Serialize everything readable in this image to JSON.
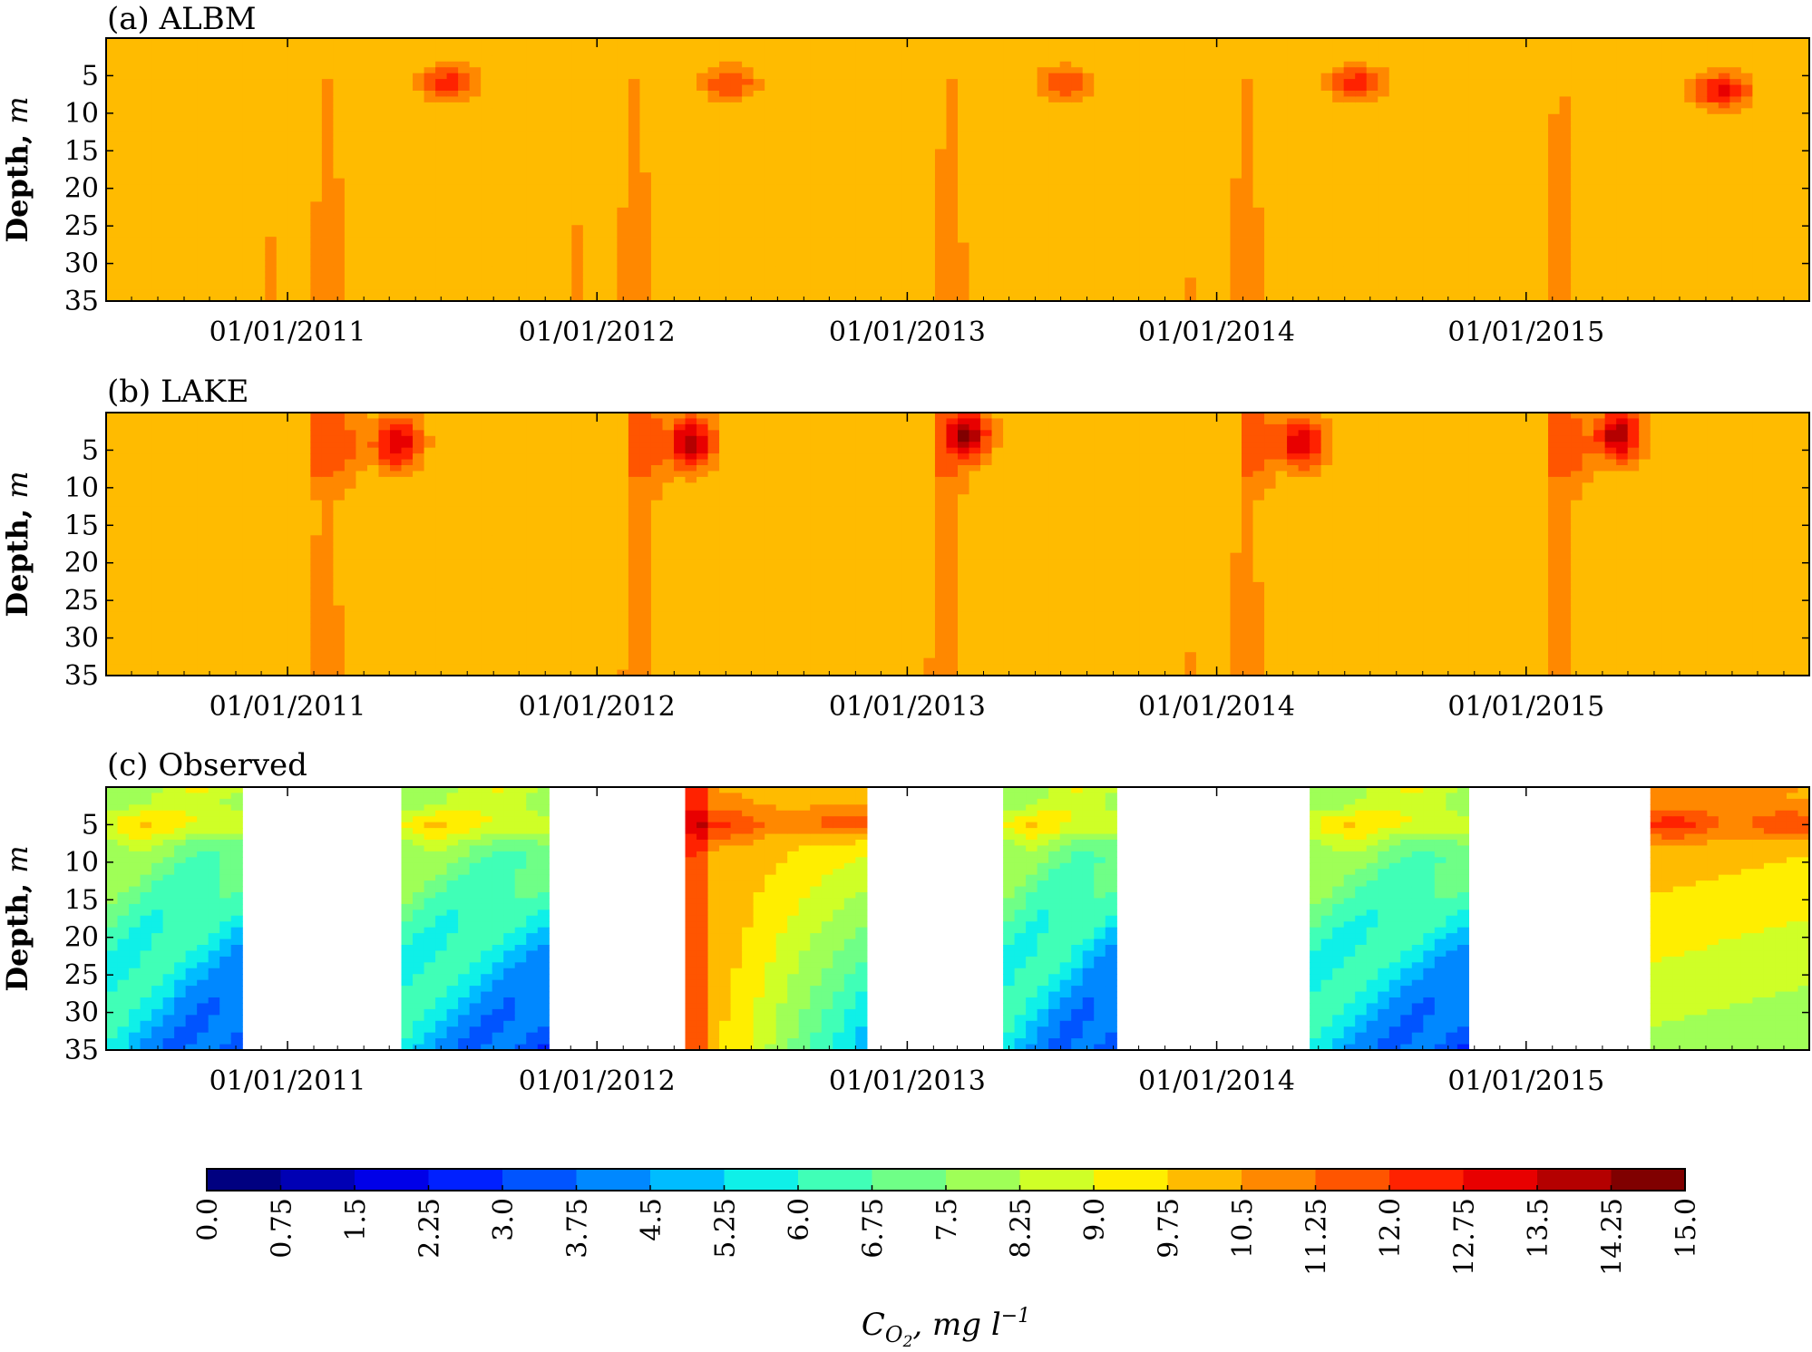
{
  "chart_data": [
    {
      "type": "heatmap",
      "title": "(a) ALBM",
      "ylabel": "Depth, m",
      "ylim": [
        35,
        0
      ],
      "yticks": [
        "5",
        "10",
        "15",
        "20",
        "25",
        "30",
        "35"
      ],
      "xticks": [
        "01/01/2011",
        "01/01/2012",
        "01/01/2013",
        "01/01/2014",
        "01/01/2015"
      ],
      "xrange": [
        "2010-06-01",
        "2015-12-01"
      ],
      "mixing_onsets": [
        "2010-12-08",
        "2011-12-05",
        "2012-12-10",
        "2013-11-25",
        "2014-11-30"
      ],
      "stratification_onsets": [
        "2011-05-25",
        "2012-04-15",
        "2013-05-25",
        "2014-05-15",
        "2015-05-20"
      ],
      "surface_maxima": [
        {
          "time": "2011-07-10",
          "depth": 6,
          "value": 12.5
        },
        {
          "time": "2012-06-05",
          "depth": 6,
          "value": 12.0
        },
        {
          "time": "2013-07-05",
          "depth": 6,
          "value": 12.0
        },
        {
          "time": "2014-06-15",
          "depth": 6,
          "value": 12.5
        },
        {
          "time": "2015-08-20",
          "depth": 7,
          "value": 13.0
        }
      ]
    },
    {
      "type": "heatmap",
      "title": "(b) LAKE",
      "ylabel": "Depth, m",
      "ylim": [
        35,
        0
      ],
      "yticks": [
        "5",
        "10",
        "15",
        "20",
        "25",
        "30",
        "35"
      ],
      "xticks": [
        "01/01/2011",
        "01/01/2012",
        "01/01/2013",
        "01/01/2014",
        "01/01/2015"
      ],
      "xrange": [
        "2010-06-01",
        "2015-12-01"
      ],
      "mixing_onsets": [
        "2010-12-05",
        "2011-12-10",
        "2012-12-05",
        "2013-11-25",
        "2014-11-30"
      ],
      "stratification_onsets": [
        "2011-04-15",
        "2012-04-25",
        "2013-03-15",
        "2014-04-05",
        "2015-04-05"
      ],
      "surface_maxima": [
        {
          "time": "2011-05-10",
          "depth": 4,
          "value": 13.5
        },
        {
          "time": "2012-04-20",
          "depth": 4,
          "value": 14.0
        },
        {
          "time": "2013-03-10",
          "depth": 3,
          "value": 14.5
        },
        {
          "time": "2014-04-10",
          "depth": 4,
          "value": 13.5
        },
        {
          "time": "2015-04-20",
          "depth": 3,
          "value": 14.0
        }
      ]
    },
    {
      "type": "heatmap",
      "title": "(c) Observed",
      "ylabel": "Depth, m",
      "ylim": [
        35,
        0
      ],
      "yticks": [
        "5",
        "10",
        "15",
        "20",
        "25",
        "30",
        "35"
      ],
      "xticks": [
        "01/01/2011",
        "01/01/2012",
        "01/01/2013",
        "01/01/2014",
        "01/01/2015"
      ],
      "xrange": [
        "2010-06-01",
        "2015-12-01"
      ],
      "observation_periods": [
        {
          "start": "2010-06-01",
          "end": "2010-11-15"
        },
        {
          "start": "2011-05-10",
          "end": "2011-11-05"
        },
        {
          "start": "2012-04-15",
          "end": "2012-11-20"
        },
        {
          "start": "2013-04-20",
          "end": "2013-09-10"
        },
        {
          "start": "2014-04-20",
          "end": "2014-10-25"
        },
        {
          "start": "2015-05-25",
          "end": "2015-12-01"
        }
      ]
    }
  ],
  "colorbar": {
    "label": "C_O2, mg l^-1",
    "label_main": "C",
    "label_sub": "O",
    "label_subsub": "2",
    "label_unit": ", mg l",
    "label_exp": "−1",
    "ticks": [
      "0.0",
      "0.75",
      "1.5",
      "2.25",
      "3.0",
      "3.75",
      "4.5",
      "5.25",
      "6.0",
      "6.75",
      "7.5",
      "8.25",
      "9.0",
      "9.75",
      "10.5",
      "11.25",
      "12.0",
      "12.75",
      "13.5",
      "14.25",
      "15.0"
    ],
    "min": 0,
    "max": 15,
    "levels": 20,
    "colormap": "jet",
    "colors": [
      "#000080",
      "#0000b4",
      "#0000e8",
      "#0020ff",
      "#0054ff",
      "#0088ff",
      "#00bcff",
      "#0ff0e8",
      "#40ffb7",
      "#6fff87",
      "#9fff57",
      "#cfff27",
      "#ffee00",
      "#ffbb00",
      "#ff8800",
      "#ff5500",
      "#ff2200",
      "#e80000",
      "#b40000",
      "#800000"
    ]
  }
}
